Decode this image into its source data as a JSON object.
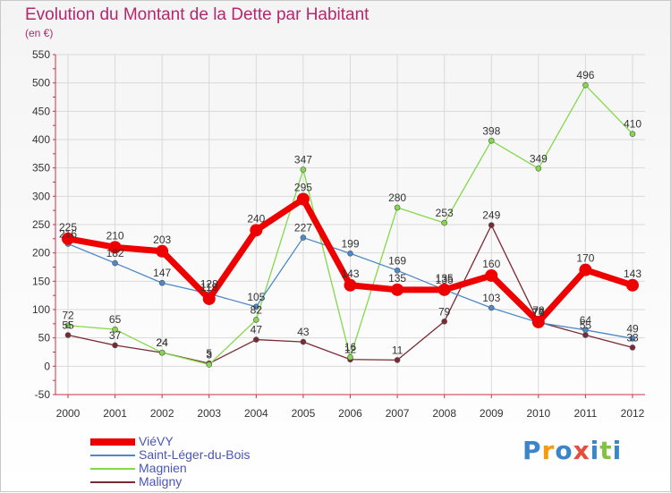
{
  "title": "Evolution du Montant de la Dette par Habitant",
  "subtitle": "(en €)",
  "logo_text": "Proxiti",
  "chart_data": {
    "type": "line",
    "ylim": [
      -50,
      550
    ],
    "yticks": [
      -50,
      0,
      50,
      100,
      150,
      200,
      250,
      300,
      350,
      400,
      450,
      500,
      550
    ],
    "x": [
      "2000",
      "2001",
      "2002",
      "2003",
      "2004",
      "2005",
      "2006",
      "2007",
      "2008",
      "2009",
      "2010",
      "2011",
      "2012"
    ],
    "grid": true,
    "legend_position": "bottom-left",
    "series": [
      {
        "name": "ViéVY",
        "color": "#ee0000",
        "values": [
          225,
          210,
          203,
          119,
          240,
          295,
          143,
          135,
          135,
          160,
          78,
          170,
          143
        ]
      },
      {
        "name": "Saint-Léger-du-Bois",
        "color": "#4d88c9",
        "values": [
          216,
          182,
          147,
          128,
          105,
          227,
          199,
          169,
          135,
          103,
          77,
          64,
          49
        ]
      },
      {
        "name": "Magnien",
        "color": "#84d94a",
        "values": [
          72,
          65,
          24,
          3,
          82,
          347,
          16,
          280,
          253,
          398,
          349,
          496,
          410
        ]
      },
      {
        "name": "Maligny",
        "color": "#7a2a33",
        "values": [
          55,
          37,
          24,
          5,
          47,
          43,
          12,
          11,
          79,
          249,
          78,
          55,
          33
        ]
      }
    ]
  }
}
